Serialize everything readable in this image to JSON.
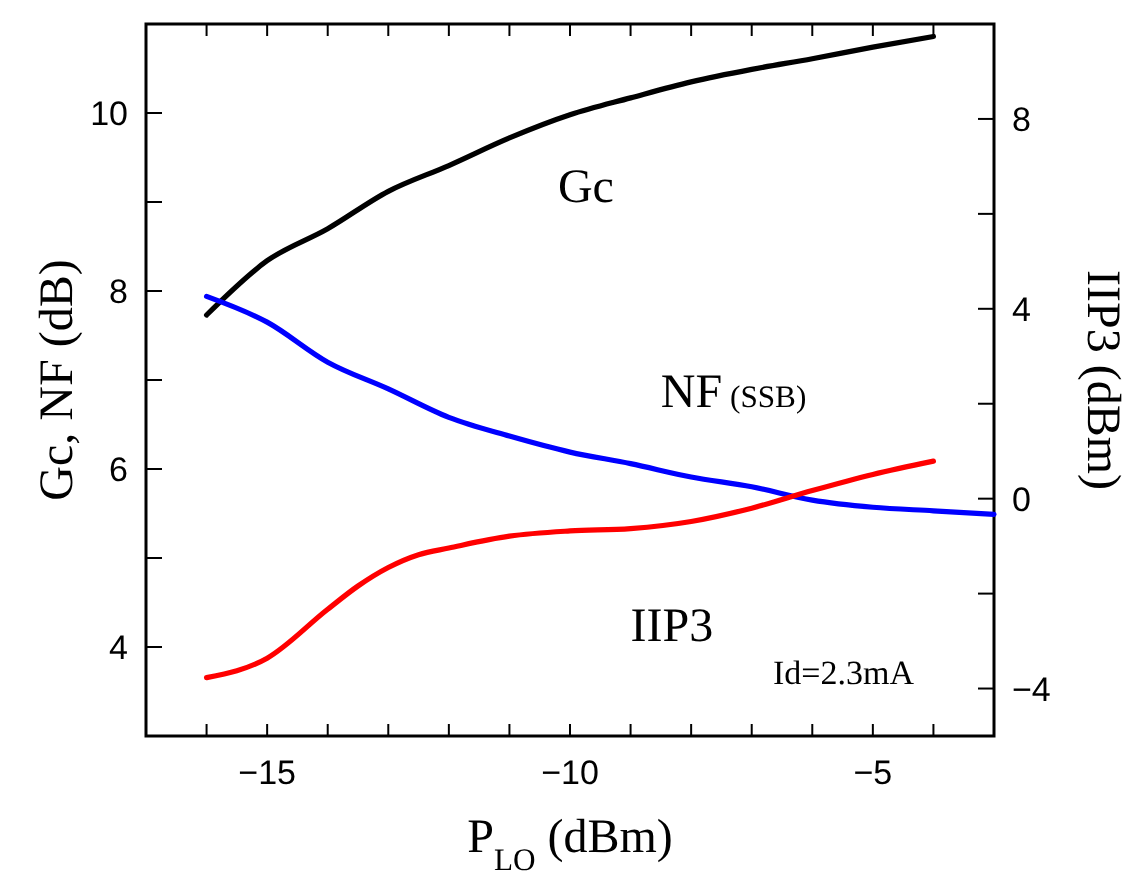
{
  "chart_data": {
    "type": "line",
    "xlabel": "P$_{LO}$ (dBm)",
    "ylabel": "Gc,  NF (dB)",
    "y2label": "IIP3 (dBm)",
    "xlim": [
      -17,
      -3
    ],
    "ylim": [
      3,
      11
    ],
    "y2lim": [
      -5,
      10
    ],
    "xticks": [
      {
        "value": -16,
        "label": null
      },
      -15,
      {
        "value": -14,
        "label": null
      },
      {
        "value": -13,
        "label": null
      },
      {
        "value": -12,
        "label": null
      },
      {
        "value": -11,
        "label": null
      },
      -10,
      {
        "value": -9,
        "label": null
      },
      {
        "value": -8,
        "label": null
      },
      {
        "value": -7,
        "label": null
      },
      {
        "value": -6,
        "label": null
      },
      -5,
      {
        "value": -4,
        "label": null
      }
    ],
    "yticks": [
      4,
      {
        "value": 5,
        "label": null
      },
      6,
      {
        "value": 7,
        "label": null
      },
      8,
      {
        "value": 9,
        "label": null
      },
      10
    ],
    "y2ticks": [
      -4,
      {
        "value": -2,
        "label": null
      },
      0,
      {
        "value": 2,
        "label": null
      },
      4,
      {
        "value": 6,
        "label": null
      },
      8
    ],
    "grid": false,
    "marker": "none",
    "line_style": "solid",
    "series": [
      {
        "name": "Gc",
        "color": "#000000",
        "x": [
          -16,
          -15,
          -14,
          -13,
          -12,
          -11,
          -10,
          -9,
          -8,
          -7,
          -6,
          -5,
          -4
        ],
        "values": [
          7.73,
          8.34,
          8.7,
          9.12,
          9.41,
          9.72,
          9.98,
          10.17,
          10.35,
          10.49,
          10.61,
          10.74,
          10.86
        ]
      },
      {
        "name": "NF (SSB)",
        "color": "#0000ff",
        "x": [
          -16,
          -15,
          -14,
          -13,
          -12,
          -11,
          -10,
          -9,
          -8,
          -7,
          -6,
          -5,
          -4,
          -3
        ],
        "values": [
          7.94,
          7.65,
          7.2,
          6.9,
          6.58,
          6.37,
          6.19,
          6.06,
          5.91,
          5.8,
          5.65,
          5.57,
          5.53,
          5.49
        ]
      },
      {
        "name": "IIP3",
        "color": "#ff0000",
        "axis": "y2",
        "x": [
          -16,
          -15,
          -14,
          -13.5,
          -13,
          -12.5,
          -12,
          -11,
          -10,
          -9,
          -8,
          -7,
          -6,
          -5,
          -4
        ],
        "values": [
          -3.77,
          -3.36,
          -2.33,
          -1.84,
          -1.45,
          -1.18,
          -1.04,
          -0.79,
          -0.68,
          -0.63,
          -0.48,
          -0.2,
          0.17,
          0.51,
          0.79
        ]
      }
    ],
    "annotations": [
      "Id=2.3mA"
    ]
  }
}
